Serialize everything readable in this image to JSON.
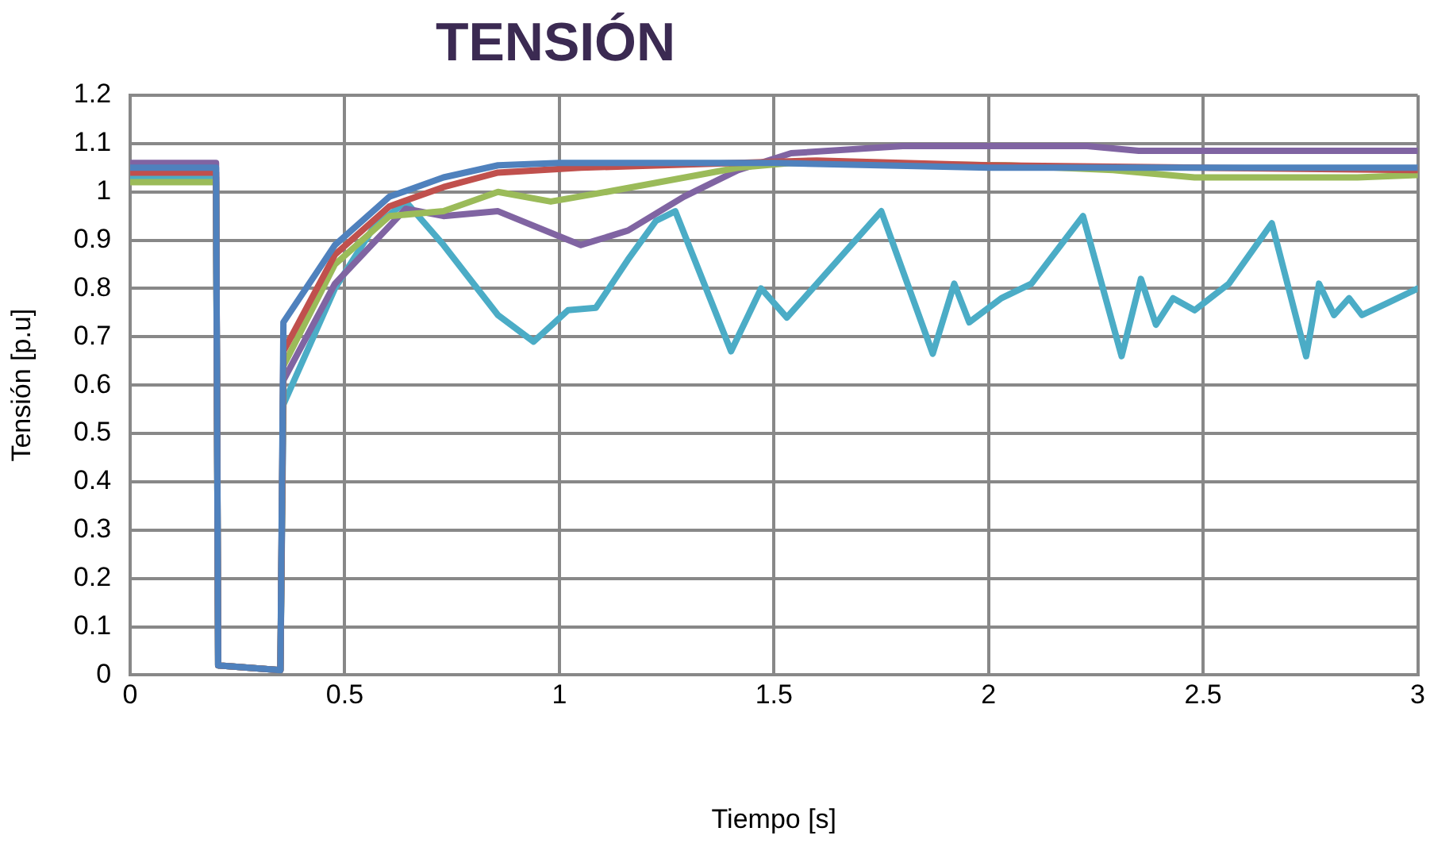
{
  "chart_data": {
    "type": "line",
    "title": "TENSIÓN",
    "xlabel": "Tiempo [s]",
    "ylabel": "Tensión [p.u]",
    "xlim": [
      0,
      3
    ],
    "xticks": [
      0,
      0.5,
      1,
      1.5,
      2,
      2.5,
      3
    ],
    "ylim": [
      0,
      1.2
    ],
    "yticks": [
      0,
      0.1,
      0.2,
      0.3,
      0.4,
      0.5,
      0.6,
      0.7,
      0.8,
      0.9,
      1,
      1.1,
      1.2
    ],
    "grid": true,
    "legend": false,
    "marker": "none",
    "line_style": "solid",
    "series": [
      {
        "color": "#4f81bd",
        "x": [
          0,
          0.2,
          0.205,
          0.35,
          0.357,
          0.477,
          0.604,
          0.73,
          0.857,
          1.0,
          1.5,
          2.0,
          2.5,
          3.0
        ],
        "values": [
          1.05,
          1.05,
          0.02,
          0.01,
          0.73,
          0.89,
          0.99,
          1.03,
          1.055,
          1.06,
          1.06,
          1.05,
          1.05,
          1.05
        ]
      },
      {
        "color": "#c0504d",
        "x": [
          0,
          0.2,
          0.205,
          0.35,
          0.357,
          0.477,
          0.604,
          0.73,
          0.857,
          1.05,
          1.6,
          2.0,
          2.5,
          3.0
        ],
        "values": [
          1.04,
          1.04,
          0.02,
          0.01,
          0.67,
          0.87,
          0.97,
          1.01,
          1.04,
          1.05,
          1.065,
          1.055,
          1.05,
          1.045
        ]
      },
      {
        "color": "#9bbb59",
        "x": [
          0,
          0.2,
          0.205,
          0.35,
          0.357,
          0.477,
          0.604,
          0.73,
          0.857,
          0.98,
          1.11,
          1.416,
          1.54,
          2.04,
          2.29,
          2.48,
          2.86,
          3.0
        ],
        "values": [
          1.02,
          1.02,
          0.02,
          0.01,
          0.64,
          0.85,
          0.95,
          0.96,
          1.0,
          0.98,
          1.0,
          1.05,
          1.06,
          1.055,
          1.045,
          1.03,
          1.03,
          1.035
        ]
      },
      {
        "color": "#8064a2",
        "x": [
          0,
          0.2,
          0.205,
          0.35,
          0.357,
          0.477,
          0.642,
          0.73,
          0.857,
          1.05,
          1.16,
          1.29,
          1.416,
          1.54,
          1.8,
          2.0,
          2.23,
          2.35,
          2.48,
          3.0
        ],
        "values": [
          1.06,
          1.06,
          0.02,
          0.01,
          0.61,
          0.81,
          0.965,
          0.95,
          0.96,
          0.89,
          0.92,
          0.99,
          1.045,
          1.08,
          1.095,
          1.095,
          1.095,
          1.085,
          1.085,
          1.085
        ]
      },
      {
        "color": "#4bacc6",
        "x": [
          0,
          0.2,
          0.205,
          0.35,
          0.357,
          0.477,
          0.566,
          0.642,
          0.73,
          0.857,
          0.94,
          1.02,
          1.085,
          1.16,
          1.225,
          1.27,
          1.4,
          1.47,
          1.53,
          1.75,
          1.87,
          1.92,
          1.955,
          2.03,
          2.1,
          2.22,
          2.31,
          2.355,
          2.39,
          2.43,
          2.48,
          2.56,
          2.66,
          2.74,
          2.77,
          2.805,
          2.84,
          2.87,
          2.93,
          3.0
        ],
        "values": [
          1.03,
          1.03,
          0.02,
          0.01,
          0.56,
          0.8,
          0.925,
          0.98,
          0.89,
          0.745,
          0.69,
          0.755,
          0.76,
          0.86,
          0.94,
          0.96,
          0.67,
          0.8,
          0.74,
          0.96,
          0.665,
          0.81,
          0.73,
          0.78,
          0.81,
          0.95,
          0.66,
          0.82,
          0.725,
          0.78,
          0.755,
          0.81,
          0.935,
          0.66,
          0.81,
          0.745,
          0.78,
          0.745,
          0.77,
          0.8
        ]
      }
    ]
  }
}
